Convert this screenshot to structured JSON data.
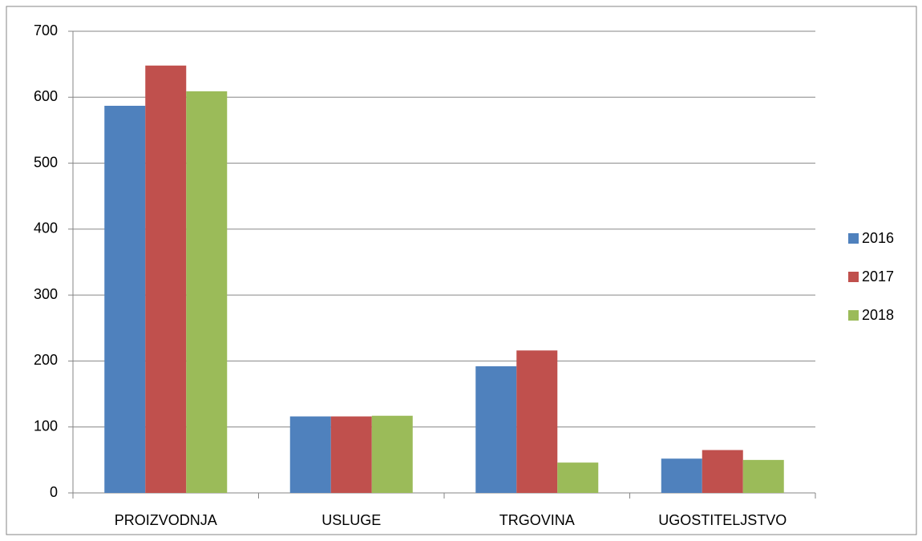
{
  "chart_data": {
    "type": "bar",
    "categories": [
      "PROIZVODNJA",
      "USLUGE",
      "TRGOVINA",
      "UGOSTITELJSTVO"
    ],
    "series": [
      {
        "name": "2016",
        "color": "#4f81bd",
        "values": [
          587,
          116,
          192,
          52
        ]
      },
      {
        "name": "2017",
        "color": "#c0504d",
        "values": [
          648,
          116,
          216,
          65
        ]
      },
      {
        "name": "2018",
        "color": "#9bbb59",
        "values": [
          609,
          117,
          46,
          50
        ]
      }
    ],
    "ylim": [
      0,
      700
    ],
    "yticks": [
      0,
      100,
      200,
      300,
      400,
      500,
      600,
      700
    ],
    "grid": true,
    "legend": "right"
  }
}
